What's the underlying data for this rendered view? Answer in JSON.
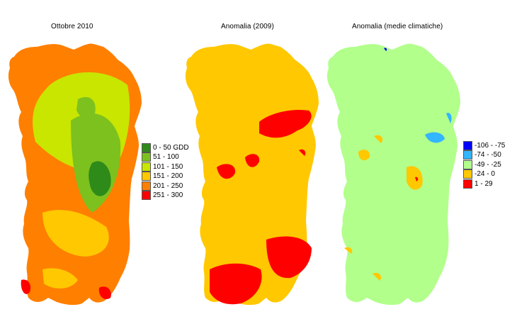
{
  "maps": [
    {
      "title": "Ottobre 2010",
      "legend": [
        {
          "label": "0 - 50 GDD",
          "color": "#2E8B1A"
        },
        {
          "label": "51 - 100",
          "color": "#7DC11E"
        },
        {
          "label": "101 - 150",
          "color": "#C8E600"
        },
        {
          "label": "151 - 200",
          "color": "#FFC800"
        },
        {
          "label": "201 - 250",
          "color": "#FF7F00"
        },
        {
          "label": "251 - 300",
          "color": "#FF0000"
        }
      ]
    },
    {
      "title": "Anomalia (2009)"
    },
    {
      "title": "Anomalia (medie climatiche)",
      "legend": [
        {
          "label": "-106 - -75",
          "color": "#0000FF"
        },
        {
          "label": "-74 - -50",
          "color": "#33B5FF"
        },
        {
          "label": "-49 - -25",
          "color": "#B2FF8C"
        },
        {
          "label": "-24 - 0",
          "color": "#FFC800"
        },
        {
          "label": "1 - 29",
          "color": "#FF0000"
        }
      ]
    }
  ]
}
